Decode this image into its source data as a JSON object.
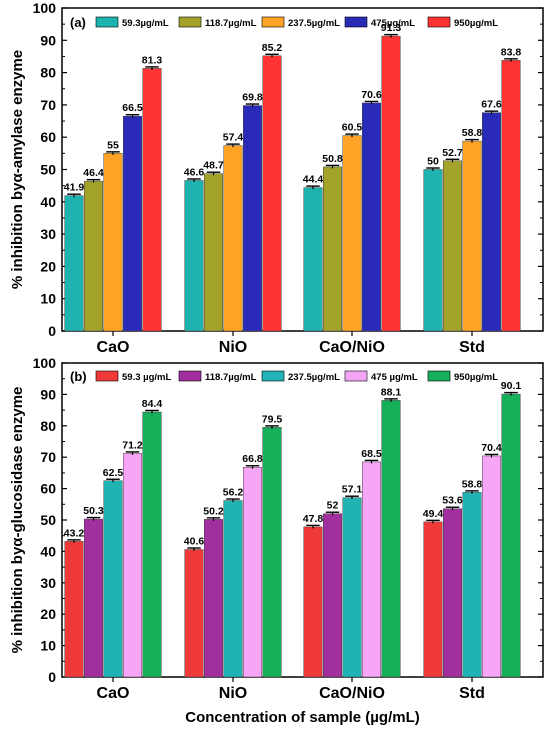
{
  "chart_data": [
    {
      "type": "bar",
      "panel_label": "(a)",
      "ylabel": "% inhibition byα-amylase enzyme",
      "xlabel": "",
      "ylim": [
        0,
        100
      ],
      "yticks": [
        0,
        10,
        20,
        30,
        40,
        50,
        60,
        70,
        80,
        90,
        100
      ],
      "categories": [
        "CaO",
        "NiO",
        "CaO/NiO",
        "Std"
      ],
      "legend_position": "top",
      "error_bars": true,
      "series": [
        {
          "name": "59.3µg/mL",
          "color": "#1fb3b0",
          "values": [
            41.9,
            46.6,
            44.4,
            50
          ],
          "labels": [
            "41.9",
            "46.6",
            "44.4",
            "50"
          ]
        },
        {
          "name": "118.7µg/mL",
          "color": "#a3a32c",
          "values": [
            46.4,
            48.7,
            50.8,
            52.7
          ],
          "labels": [
            "46.4",
            "48.7",
            "50.8",
            "52.7"
          ]
        },
        {
          "name": "237.5µg/mL",
          "color": "#ffa326",
          "values": [
            55,
            57.4,
            60.5,
            58.8
          ],
          "labels": [
            "55",
            "57.4",
            "60.5",
            "58.8"
          ]
        },
        {
          "name": "475µg/mL",
          "color": "#2a2ab8",
          "values": [
            66.5,
            69.8,
            70.6,
            67.6
          ],
          "labels": [
            "66.5",
            "69.8",
            "70.6",
            "67.6"
          ]
        },
        {
          "name": "950µg/mL",
          "color": "#ff3333",
          "values": [
            81.3,
            85.2,
            91.3,
            83.8
          ],
          "labels": [
            "81.3",
            "85.2",
            "91.3",
            "83.8"
          ]
        }
      ]
    },
    {
      "type": "bar",
      "panel_label": "(b)",
      "ylabel": "% inhibition byα-glucosidase enzyme",
      "xlabel": "Concentration of sample (µg/mL)",
      "ylim": [
        0,
        100
      ],
      "yticks": [
        0,
        10,
        20,
        30,
        40,
        50,
        60,
        70,
        80,
        90,
        100
      ],
      "categories": [
        "CaO",
        "NiO",
        "CaO/NiO",
        "Std"
      ],
      "legend_position": "top",
      "error_bars": true,
      "series": [
        {
          "name": "59.3 µg/mL",
          "color": "#f03a3a",
          "values": [
            43.2,
            40.6,
            47.8,
            49.4
          ],
          "labels": [
            "43.2",
            "40.6",
            "47.8",
            "49.4"
          ]
        },
        {
          "name": "118.7µg/mL",
          "color": "#a1309e",
          "values": [
            50.3,
            50.2,
            52,
            53.6
          ],
          "labels": [
            "50.3",
            "50.2",
            "52",
            "53.6"
          ]
        },
        {
          "name": "237.5µg/mL",
          "color": "#20b3b3",
          "values": [
            62.5,
            56.2,
            57.1,
            58.8
          ],
          "labels": [
            "62.5",
            "56.2",
            "57.1",
            "58.8"
          ]
        },
        {
          "name": "475 µg/mL",
          "color": "#f7a6f7",
          "values": [
            71.2,
            66.8,
            68.5,
            70.4
          ],
          "labels": [
            "71.2",
            "66.8",
            "68.5",
            "70.4"
          ]
        },
        {
          "name": "950µg/mL",
          "color": "#17b05a",
          "values": [
            84.4,
            79.5,
            88.1,
            90.1
          ],
          "labels": [
            "84.4",
            "79.5",
            "88.1",
            "90.1"
          ]
        }
      ]
    }
  ]
}
